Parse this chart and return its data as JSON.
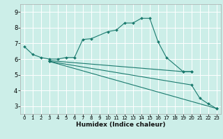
{
  "xlabel": "Humidex (Indice chaleur)",
  "background_color": "#cceee8",
  "grid_color": "#ffffff",
  "line_color": "#1a7a6e",
  "xlim": [
    -0.5,
    23.5
  ],
  "ylim": [
    2.5,
    9.5
  ],
  "xticks": [
    0,
    1,
    2,
    3,
    4,
    5,
    6,
    7,
    8,
    9,
    10,
    11,
    12,
    13,
    14,
    15,
    16,
    17,
    18,
    19,
    20,
    21,
    22,
    23
  ],
  "yticks": [
    3,
    4,
    5,
    6,
    7,
    8,
    9
  ],
  "lines": [
    {
      "x": [
        0,
        1,
        2,
        3,
        4,
        5,
        6,
        7,
        8,
        10,
        11,
        12,
        13,
        14,
        15,
        16,
        17,
        19,
        20
      ],
      "y": [
        6.8,
        6.3,
        6.1,
        6.0,
        6.0,
        6.1,
        6.1,
        7.25,
        7.3,
        7.75,
        7.85,
        8.3,
        8.3,
        8.6,
        8.6,
        7.1,
        6.1,
        5.2,
        5.2
      ]
    },
    {
      "x": [
        3,
        23
      ],
      "y": [
        5.85,
        2.85
      ]
    },
    {
      "x": [
        3,
        20,
        21,
        22,
        23
      ],
      "y": [
        5.85,
        4.35,
        3.5,
        3.15,
        2.85
      ]
    },
    {
      "x": [
        3,
        19,
        20
      ],
      "y": [
        5.9,
        5.2,
        5.2
      ]
    }
  ]
}
